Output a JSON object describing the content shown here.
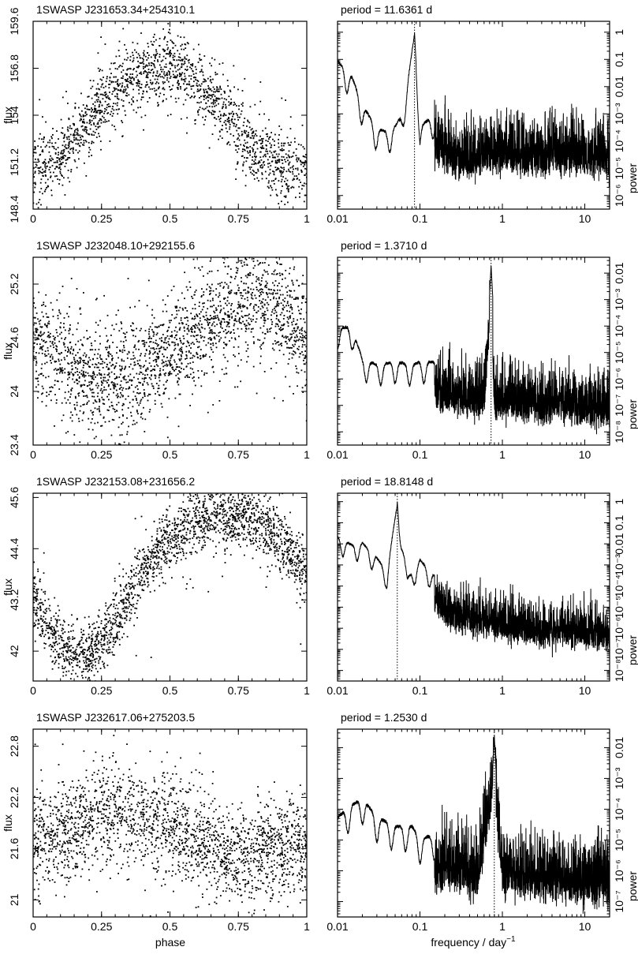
{
  "chart_data": [
    {
      "type": "scatter",
      "title": "1SWASP J231653.34+254310.1",
      "ylabel": "flux",
      "xlim": [
        0,
        1
      ],
      "ylim": [
        148.4,
        159.6
      ],
      "x_ticks": [
        0,
        0.25,
        0.5,
        0.75,
        1
      ],
      "x_tick_labels": [
        "0",
        "0.25",
        "0.5",
        "0.75",
        "1"
      ],
      "y_ticks": [
        148.4,
        151.2,
        154,
        156.8,
        159.6
      ],
      "y_tick_labels": [
        "148.4",
        "151.2",
        "154",
        "156.8",
        "159.6"
      ],
      "profile": {
        "x": [
          0,
          0.1,
          0.2,
          0.3,
          0.4,
          0.5,
          0.6,
          0.7,
          0.8,
          0.9,
          1
        ],
        "y": [
          150.8,
          151.6,
          153.5,
          155.6,
          156.4,
          157.0,
          156.2,
          154.2,
          151.9,
          150.9,
          150.8
        ]
      },
      "scatter_sd": 1.0,
      "n_points": 1800
    },
    {
      "type": "line",
      "title": "period =   11.6361 d",
      "xlabel": "",
      "ylabel": "power",
      "log_x": true,
      "log_y": true,
      "xlim": [
        0.01,
        20
      ],
      "ylim_log10": [
        -6.5,
        0.4
      ],
      "x_tick_labels": [
        "0.01",
        "0.1",
        "1",
        "10"
      ],
      "y_tick_labels": [
        "10⁻⁶",
        "10⁻⁵",
        "10⁻⁴",
        "10⁻³",
        "0.01",
        "0.1",
        "1"
      ],
      "peak_frequency": 0.0859,
      "envelope": {
        "freq": [
          0.01,
          0.015,
          0.02,
          0.03,
          0.04,
          0.05,
          0.06,
          0.07,
          0.0859,
          0.1,
          0.15,
          0.3,
          0.5,
          1,
          2,
          5,
          10,
          20
        ],
        "log10_power": [
          -1.0,
          -1.6,
          -2.6,
          -3.5,
          -3.6,
          -3.4,
          -3.0,
          -1.9,
          0.0,
          -3.4,
          -3.0,
          -3.4,
          -3.3,
          -3.2,
          -3.3,
          -3.2,
          -3.3,
          -3.4
        ]
      }
    },
    {
      "type": "scatter",
      "title": "1SWASP J232048.10+292155.6",
      "ylabel": "flux",
      "xlim": [
        0,
        1
      ],
      "ylim": [
        23.4,
        25.5
      ],
      "x_ticks": [
        0,
        0.25,
        0.5,
        0.75,
        1
      ],
      "x_tick_labels": [
        "0",
        "0.25",
        "0.5",
        "0.75",
        "1"
      ],
      "y_ticks": [
        23.4,
        24,
        24.6,
        25.2
      ],
      "y_tick_labels": [
        "23.4",
        "24",
        "24.6",
        "25.2"
      ],
      "profile": {
        "x": [
          0,
          0.1,
          0.2,
          0.3,
          0.4,
          0.5,
          0.6,
          0.7,
          0.8,
          0.9,
          1
        ],
        "y": [
          24.55,
          24.35,
          24.15,
          24.1,
          24.25,
          24.45,
          24.65,
          24.9,
          25.05,
          24.95,
          24.6
        ]
      },
      "scatter_sd": 0.3,
      "n_points": 2200
    },
    {
      "type": "line",
      "title": "period =    1.3710 d",
      "xlabel": "",
      "ylabel": "power",
      "log_x": true,
      "log_y": true,
      "xlim": [
        0.01,
        20
      ],
      "ylim_log10": [
        -8.5,
        -1.4
      ],
      "x_tick_labels": [
        "0.01",
        "0.1",
        "1",
        "10"
      ],
      "y_tick_labels": [
        "10⁻⁸",
        "10⁻⁷",
        "10⁻⁶",
        "10⁻⁵",
        "10⁻⁴",
        "10⁻³",
        "0.01"
      ],
      "peak_frequency": 0.7294,
      "envelope": {
        "freq": [
          0.01,
          0.015,
          0.02,
          0.03,
          0.05,
          0.08,
          0.1,
          0.2,
          0.4,
          0.6,
          0.7294,
          0.8,
          1,
          2,
          5,
          10,
          20
        ],
        "log10_power": [
          -4.0,
          -4.0,
          -5.2,
          -5.4,
          -5.3,
          -5.4,
          -5.3,
          -5.3,
          -5.4,
          -5.5,
          -1.7,
          -5.6,
          -5.5,
          -5.7,
          -5.7,
          -5.8,
          -5.9
        ]
      }
    },
    {
      "type": "scatter",
      "title": "1SWASP J232153.08+231656.2",
      "ylabel": "flux",
      "xlim": [
        0,
        1
      ],
      "ylim": [
        41.3,
        45.7
      ],
      "x_ticks": [
        0,
        0.25,
        0.5,
        0.75,
        1
      ],
      "x_tick_labels": [
        "0",
        "0.25",
        "0.5",
        "0.75",
        "1"
      ],
      "y_ticks": [
        42,
        43.2,
        44.4,
        45.6
      ],
      "y_tick_labels": [
        "42",
        "43.2",
        "44.4",
        "45.6"
      ],
      "profile": {
        "x": [
          0,
          0.05,
          0.1,
          0.15,
          0.2,
          0.25,
          0.3,
          0.4,
          0.5,
          0.6,
          0.7,
          0.8,
          0.9,
          1
        ],
        "y": [
          43.3,
          42.7,
          42.2,
          41.9,
          41.8,
          42.2,
          42.7,
          43.8,
          44.7,
          45.1,
          45.2,
          45.1,
          44.6,
          43.8
        ]
      },
      "scatter_sd": 0.35,
      "n_points": 2200
    },
    {
      "type": "line",
      "title": "period =   18.8148 d",
      "xlabel": "",
      "ylabel": "power",
      "log_x": true,
      "log_y": true,
      "xlim": [
        0.01,
        20
      ],
      "ylim_log10": [
        -8.5,
        0.4
      ],
      "x_tick_labels": [
        "0.01",
        "0.1",
        "1",
        "10"
      ],
      "y_tick_labels": [
        "10⁻⁸",
        "10⁻⁷",
        "10⁻⁶",
        "10⁻⁵",
        "10⁻⁴",
        "10⁻³",
        "0.01",
        "0.1",
        "1"
      ],
      "peak_frequency": 0.0531,
      "envelope": {
        "freq": [
          0.01,
          0.015,
          0.02,
          0.03,
          0.04,
          0.0531,
          0.07,
          0.1,
          0.2,
          0.5,
          1,
          2,
          5,
          10,
          20
        ],
        "log10_power": [
          -1.6,
          -2.0,
          -1.9,
          -2.6,
          -3.3,
          0.0,
          -3.6,
          -2.7,
          -4.0,
          -4.3,
          -4.6,
          -4.8,
          -4.9,
          -5.0,
          -5.1
        ]
      }
    },
    {
      "type": "scatter",
      "title": "1SWASP J232617.06+275203.5",
      "ylabel": "flux",
      "xlim": [
        0,
        1
      ],
      "ylim": [
        20.8,
        23.0
      ],
      "x_ticks": [
        0,
        0.25,
        0.5,
        0.75,
        1
      ],
      "x_tick_labels": [
        "0",
        "0.25",
        "0.5",
        "0.75",
        "1"
      ],
      "y_ticks": [
        21,
        21.6,
        22.2,
        22.8
      ],
      "y_tick_labels": [
        "21",
        "21.6",
        "22.2",
        "22.8"
      ],
      "profile": {
        "x": [
          0,
          0.1,
          0.2,
          0.3,
          0.4,
          0.5,
          0.6,
          0.7,
          0.8,
          0.9,
          1
        ],
        "y": [
          21.65,
          21.75,
          21.95,
          22.05,
          22.0,
          21.85,
          21.7,
          21.55,
          21.5,
          21.6,
          21.65
        ]
      },
      "scatter_sd": 0.28,
      "n_points": 2200
    },
    {
      "type": "line",
      "title": "period =    1.2530 d",
      "xlabel": "",
      "ylabel": "power",
      "log_x": true,
      "log_y": true,
      "xlim": [
        0.01,
        20
      ],
      "ylim_log10": [
        -7.5,
        -1.4
      ],
      "x_tick_labels": [
        "0.01",
        "0.1",
        "1",
        "10"
      ],
      "y_tick_labels": [
        "10⁻⁷",
        "10⁻⁶",
        "10⁻⁵",
        "10⁻⁴",
        "10⁻³",
        "0.01"
      ],
      "peak_frequency": 0.7981,
      "envelope": {
        "freq": [
          0.01,
          0.015,
          0.02,
          0.03,
          0.05,
          0.08,
          0.1,
          0.2,
          0.5,
          0.7981,
          1,
          2,
          5,
          10,
          20
        ],
        "log10_power": [
          -4.2,
          -3.8,
          -3.6,
          -4.2,
          -4.5,
          -4.5,
          -4.9,
          -4.7,
          -4.9,
          -1.6,
          -4.8,
          -4.9,
          -5.0,
          -5.1,
          -5.2
        ]
      }
    }
  ],
  "axes_labels": {
    "phase": "phase",
    "frequency": "frequency / day",
    "frequency_exp": "−1"
  }
}
